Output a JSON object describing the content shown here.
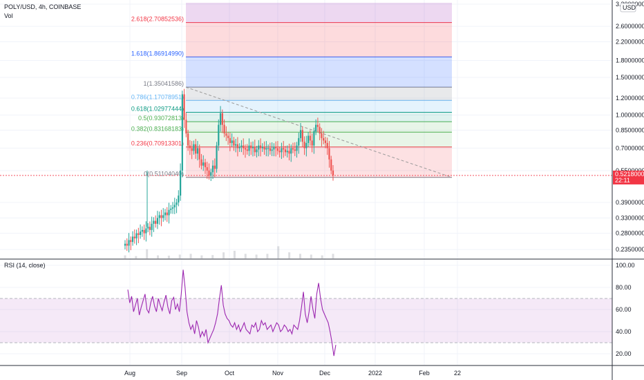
{
  "header": {
    "symbol": "POLY/USD, 4h, COINBASE",
    "vol": "Vol",
    "currency": "USD"
  },
  "rsi_title": "RSI (14, close)",
  "price_tag": {
    "value": "0.52180000",
    "countdown": "22:11"
  },
  "colors": {
    "up": "#26a69a",
    "down": "#ef5350",
    "rsi": "#9c27b0",
    "rsi_band": "#e1bee7",
    "trend": "#999999",
    "grid": "#f0f3fa",
    "tag": "#f23645"
  },
  "chart_data": [
    {
      "type": "candlestick",
      "title": "POLY/USD, 4h, COINBASE",
      "scale": "log",
      "ylim": [
        0.22,
        3.35
      ],
      "y_ticks": [
        {
          "v": 3.3,
          "label": "3.30000000"
        },
        {
          "v": 2.6,
          "label": "2.60000000"
        },
        {
          "v": 2.2,
          "label": "2.20000000"
        },
        {
          "v": 1.8,
          "label": "1.80000000"
        },
        {
          "v": 1.5,
          "label": "1.50000000"
        },
        {
          "v": 1.2,
          "label": "1.20000000"
        },
        {
          "v": 1.0,
          "label": "1.00000000"
        },
        {
          "v": 0.85,
          "label": "0.85000000"
        },
        {
          "v": 0.7,
          "label": "0.70000000"
        },
        {
          "v": 0.55,
          "label": "0.55000000"
        },
        {
          "v": 0.39,
          "label": "0.39000000"
        },
        {
          "v": 0.33,
          "label": "0.33000000"
        },
        {
          "v": 0.28,
          "label": "0.28000000"
        },
        {
          "v": 0.235,
          "label": "0.23500000"
        }
      ],
      "x_ticks": [
        "Aug",
        "Sep",
        "Oct",
        "Nov",
        "Dec",
        "2022",
        "Feb",
        "22"
      ],
      "fib_levels": [
        {
          "ratio": "0",
          "price": 0.5110404,
          "label": "0(0.51104040)",
          "color": "#787b86",
          "fill": null
        },
        {
          "ratio": "0.236",
          "price": 0.70913301,
          "label": "0.236(0.70913301)",
          "color": "#f23645",
          "fill": "rgba(242,54,69,0.15)"
        },
        {
          "ratio": "0.382",
          "price": 0.83168183,
          "label": "0.382(0.83168183)",
          "color": "#4caf50",
          "fill": "rgba(76,175,80,0.13)"
        },
        {
          "ratio": "0.5",
          "price": 0.93072813,
          "label": "0.5(0.93072813)",
          "color": "#4caf50",
          "fill": "rgba(76,175,80,0.13)"
        },
        {
          "ratio": "0.618",
          "price": 1.02977444,
          "label": "0.618(1.02977444)",
          "color": "#089981",
          "fill": "rgba(8,153,129,0.13)"
        },
        {
          "ratio": "0.786",
          "price": 1.17078951,
          "label": "0.786(1.17078951)",
          "color": "#64b5f6",
          "fill": "rgba(100,181,246,0.17)"
        },
        {
          "ratio": "1",
          "price": 1.35041586,
          "label": "1(1.35041586)",
          "color": "#787b86",
          "fill": "rgba(120,123,134,0.17)"
        },
        {
          "ratio": "1.618",
          "price": 1.8691499,
          "label": "1.618(1.86914990)",
          "color": "#2962ff",
          "fill": "rgba(41,98,255,0.20)"
        },
        {
          "ratio": "2.618",
          "price": 2.70852536,
          "label": "2.618(2.70852536)",
          "color": "#f23645",
          "fill": "rgba(242,54,69,0.18)"
        },
        {
          "ratio": "top",
          "price": 3.35,
          "label": "",
          "color": "#9c27b0",
          "fill": "rgba(156,39,176,0.18)"
        }
      ],
      "trendline": {
        "from_price": 1.35,
        "to_price": 0.5110404
      },
      "last_price": 0.5218,
      "closes": [
        0.25,
        0.245,
        0.26,
        0.255,
        0.27,
        0.265,
        0.28,
        0.275,
        0.285,
        0.29,
        0.28,
        0.295,
        0.3,
        0.29,
        0.31,
        0.32,
        0.31,
        0.33,
        0.34,
        0.33,
        0.34,
        0.35,
        0.34,
        0.36,
        0.365,
        0.37,
        0.38,
        0.39,
        0.42,
        0.55,
        1.25,
        0.95,
        0.82,
        0.72,
        0.7,
        0.68,
        0.73,
        0.66,
        0.7,
        0.62,
        0.58,
        0.6,
        0.57,
        0.55,
        0.52,
        0.54,
        0.58,
        0.56,
        0.72,
        0.9,
        1.02,
        0.9,
        0.82,
        0.8,
        0.78,
        0.74,
        0.76,
        0.72,
        0.73,
        0.7,
        0.71,
        0.72,
        0.7,
        0.69,
        0.68,
        0.72,
        0.7,
        0.71,
        0.67,
        0.69,
        0.72,
        0.7,
        0.71,
        0.69,
        0.7,
        0.7,
        0.68,
        0.69,
        0.71,
        0.7,
        0.68,
        0.67,
        0.7,
        0.69,
        0.67,
        0.68,
        0.66,
        0.7,
        0.69,
        0.68,
        0.72,
        0.78,
        0.85,
        0.75,
        0.7,
        0.74,
        0.8,
        0.76,
        0.72,
        0.84,
        0.9,
        0.88,
        0.82,
        0.78,
        0.76,
        0.74,
        0.7,
        0.62,
        0.55,
        0.5218
      ],
      "volume_peaks": [
        0.2,
        0.15,
        0.6,
        0.2,
        0.18,
        0.25,
        0.3,
        0.2,
        0.22,
        0.4,
        0.5,
        0.3,
        0.25,
        0.3,
        0.8,
        0.4,
        0.3,
        0.25,
        0.2,
        0.3
      ]
    },
    {
      "type": "line",
      "title": "RSI (14, close)",
      "ylim": [
        10,
        105
      ],
      "y_ticks": [
        {
          "v": 100,
          "label": "100.00"
        },
        {
          "v": 80,
          "label": "80.00"
        },
        {
          "v": 60,
          "label": "60.00"
        },
        {
          "v": 40,
          "label": "40.00"
        },
        {
          "v": 20,
          "label": "20.00"
        }
      ],
      "bands": [
        30,
        70
      ],
      "values": [
        78,
        66,
        72,
        58,
        64,
        70,
        55,
        62,
        68,
        74,
        60,
        57,
        66,
        72,
        63,
        58,
        70,
        64,
        59,
        67,
        73,
        62,
        56,
        68,
        71,
        60,
        65,
        58,
        74,
        96,
        80,
        58,
        48,
        42,
        46,
        38,
        50,
        44,
        35,
        40,
        36,
        42,
        30,
        34,
        38,
        42,
        48,
        56,
        70,
        82,
        64,
        56,
        52,
        50,
        46,
        44,
        48,
        42,
        46,
        40,
        44,
        48,
        42,
        40,
        38,
        46,
        44,
        48,
        40,
        42,
        50,
        46,
        48,
        42,
        44,
        46,
        40,
        44,
        48,
        46,
        40,
        42,
        46,
        44,
        40,
        42,
        38,
        46,
        44,
        42,
        50,
        62,
        76,
        56,
        48,
        58,
        72,
        60,
        52,
        74,
        84,
        70,
        60,
        56,
        52,
        48,
        40,
        30,
        18,
        28
      ]
    }
  ]
}
